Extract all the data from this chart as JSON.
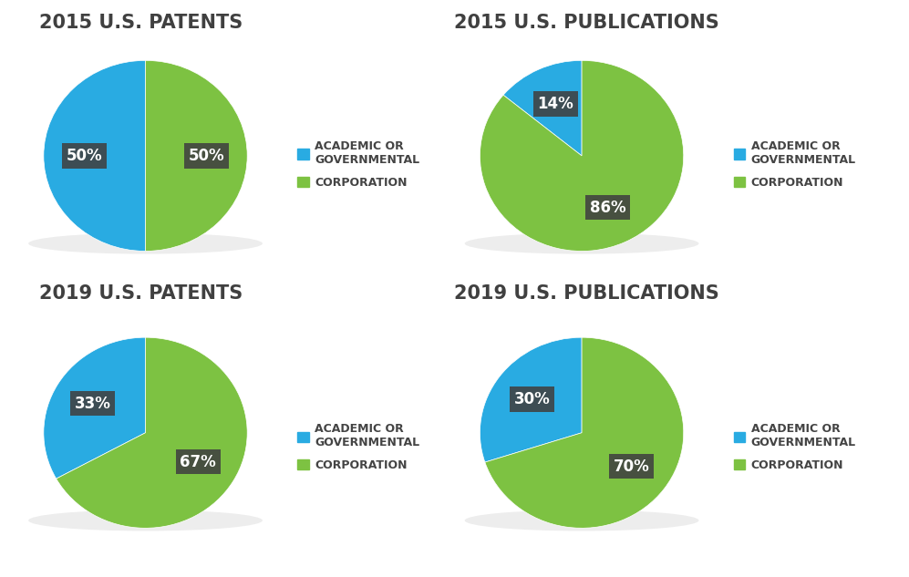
{
  "charts": [
    {
      "title": "2015 U.S. PATENTS",
      "values": [
        50,
        50
      ],
      "labels": [
        "50%",
        "50%"
      ],
      "colors": [
        "#29ABE2",
        "#7DC242"
      ],
      "startangle": 90
    },
    {
      "title": "2015 U.S. PUBLICATIONS",
      "values": [
        14,
        86
      ],
      "labels": [
        "14%",
        "86%"
      ],
      "colors": [
        "#29ABE2",
        "#7DC242"
      ],
      "startangle": 90
    },
    {
      "title": "2019 U.S. PATENTS",
      "values": [
        33,
        67
      ],
      "labels": [
        "33%",
        "67%"
      ],
      "colors": [
        "#29ABE2",
        "#7DC242"
      ],
      "startangle": 90
    },
    {
      "title": "2019 U.S. PUBLICATIONS",
      "values": [
        30,
        70
      ],
      "labels": [
        "30%",
        "70%"
      ],
      "colors": [
        "#29ABE2",
        "#7DC242"
      ],
      "startangle": 90
    }
  ],
  "legend_labels": [
    "ACADEMIC OR\nGOVERNMENTAL",
    "CORPORATION"
  ],
  "legend_colors": [
    "#29ABE2",
    "#7DC242"
  ],
  "bg_color": "#FFFFFF",
  "title_fontsize": 15,
  "label_fontsize": 12,
  "legend_fontsize": 9,
  "label_bg_color": "#404040",
  "label_text_color": "#FFFFFF",
  "legend_bg_color": "#EBEBEB",
  "shadow_color": "#CCCCCC",
  "title_color": "#404040"
}
